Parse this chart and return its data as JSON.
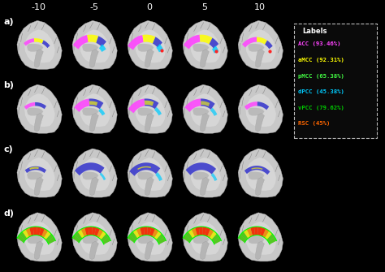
{
  "background_color": "#000000",
  "rows": [
    "a)",
    "b)",
    "c)",
    "d)"
  ],
  "col_labels": [
    "-10",
    "-5",
    "0",
    "5",
    "10"
  ],
  "legend_title": "Labels",
  "legend_title_color": "#ffffff",
  "legend_entries": [
    {
      "label": "ACC (93.46%)",
      "color": "#ff44ff"
    },
    {
      "label": "aMCC (92.31%)",
      "color": "#ffff00"
    },
    {
      "label": "pMCC (65.38%)",
      "color": "#44ff44"
    },
    {
      "label": "dPCC (45.38%)",
      "color": "#00ccff"
    },
    {
      "label": "vPCC (79.62%)",
      "color": "#00cc00"
    },
    {
      "label": "RSC (45%)",
      "color": "#ff6600"
    }
  ],
  "legend_bg": "#111111",
  "legend_border_color": "#bbbbbb",
  "col_label_color": "#ffffff",
  "row_label_color": "#ffffff",
  "col_label_fontsize": 8,
  "row_label_fontsize": 8
}
